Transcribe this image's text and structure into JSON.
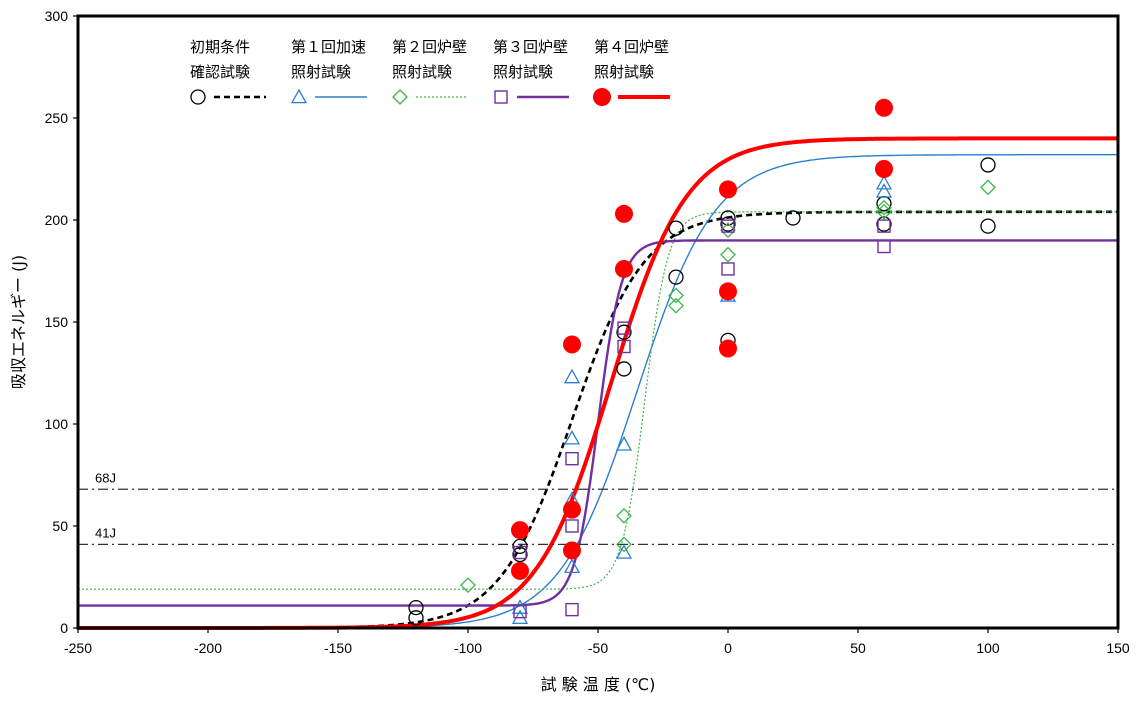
{
  "chart_data": {
    "type": "scatter",
    "title": "",
    "xlabel": "試 験 温 度 (℃)",
    "ylabel": "吸収エネルギー (J)",
    "xlim": [
      -250,
      150
    ],
    "ylim": [
      0,
      300
    ],
    "xticks": [
      -250,
      -200,
      -150,
      -100,
      -50,
      0,
      50,
      100,
      150
    ],
    "yticks": [
      0,
      50,
      100,
      150,
      200,
      250,
      300
    ],
    "grid": false,
    "legend_position": "top-left",
    "reference_lines": [
      {
        "label": "68J",
        "y": 68
      },
      {
        "label": "41J",
        "y": 41
      }
    ],
    "series": [
      {
        "legend_line1": "初期条件",
        "legend_line2": "確認試験",
        "marker": "circle-open",
        "line": "dashed",
        "color": "#000000",
        "curve": {
          "A": 0,
          "B": 204,
          "T0": -60,
          "C": 28
        },
        "points": [
          [
            -120,
            5
          ],
          [
            -120,
            10
          ],
          [
            -80,
            40
          ],
          [
            -80,
            36
          ],
          [
            -40,
            145
          ],
          [
            -40,
            127
          ],
          [
            -20,
            196
          ],
          [
            -20,
            172
          ],
          [
            0,
            201
          ],
          [
            0,
            198
          ],
          [
            0,
            141
          ],
          [
            25,
            201
          ],
          [
            60,
            208
          ],
          [
            60,
            198
          ],
          [
            100,
            227
          ],
          [
            100,
            197
          ]
        ]
      },
      {
        "legend_line1": "第１回加速",
        "legend_line2": "照射試験",
        "marker": "triangle-open",
        "line": "solid-thin",
        "color": "#2b7fd0",
        "curve": {
          "A": 0,
          "B": 232,
          "T0": -35,
          "C": 30
        },
        "points": [
          [
            -80,
            10
          ],
          [
            -80,
            5
          ],
          [
            -60,
            123
          ],
          [
            -60,
            93
          ],
          [
            -60,
            63
          ],
          [
            -60,
            30
          ],
          [
            -40,
            90
          ],
          [
            -40,
            37
          ],
          [
            0,
            163
          ],
          [
            60,
            218
          ],
          [
            60,
            214
          ]
        ]
      },
      {
        "legend_line1": "第２回炉壁",
        "legend_line2": "照射試験",
        "marker": "diamond-open",
        "line": "dotted-thin",
        "color": "#3db54a",
        "curve": {
          "A": 19,
          "B": 204,
          "T0": -32,
          "C": 9
        },
        "points": [
          [
            -100,
            21
          ],
          [
            -40,
            55
          ],
          [
            -40,
            41
          ],
          [
            -20,
            163
          ],
          [
            -20,
            158
          ],
          [
            0,
            195
          ],
          [
            0,
            183
          ],
          [
            60,
            206
          ],
          [
            60,
            204
          ],
          [
            100,
            216
          ]
        ]
      },
      {
        "legend_line1": "第３回炉壁",
        "legend_line2": "照射試験",
        "marker": "square-open",
        "line": "solid",
        "color": "#7030a0",
        "curve": {
          "A": 11,
          "B": 190,
          "T0": -50,
          "C": 9
        },
        "points": [
          [
            -80,
            8
          ],
          [
            -80,
            37
          ],
          [
            -60,
            9
          ],
          [
            -60,
            50
          ],
          [
            -60,
            83
          ],
          [
            -40,
            147
          ],
          [
            -40,
            138
          ],
          [
            0,
            197
          ],
          [
            0,
            176
          ],
          [
            60,
            197
          ],
          [
            60,
            187
          ]
        ]
      },
      {
        "legend_line1": "第４回炉壁",
        "legend_line2": "照射試験",
        "marker": "circle-filled",
        "line": "solid-thick",
        "color": "#ff0000",
        "curve": {
          "A": 0,
          "B": 240,
          "T0": -45,
          "C": 29
        },
        "points": [
          [
            -80,
            48
          ],
          [
            -80,
            28
          ],
          [
            -60,
            139
          ],
          [
            -60,
            58
          ],
          [
            -60,
            38
          ],
          [
            -40,
            203
          ],
          [
            -40,
            176
          ],
          [
            0,
            215
          ],
          [
            0,
            165
          ],
          [
            0,
            137
          ],
          [
            60,
            255
          ],
          [
            60,
            225
          ]
        ]
      }
    ]
  }
}
